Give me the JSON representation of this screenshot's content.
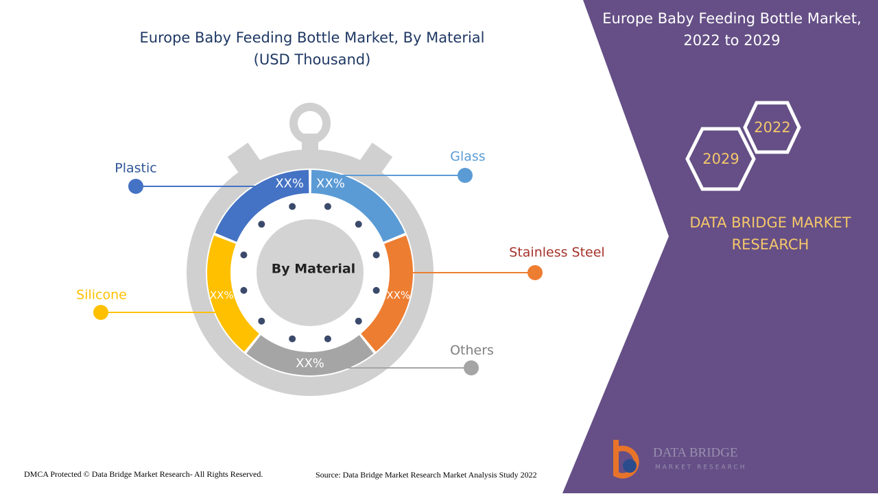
{
  "title": {
    "line1": "Europe Baby Feeding Bottle Market, By Material",
    "line2": "(USD Thousand)"
  },
  "center_label": "By Material",
  "segments": [
    {
      "name": "Plastic",
      "value_label": "XX%",
      "color": "#4472c4",
      "label_color": "#2f5597"
    },
    {
      "name": "Glass",
      "value_label": "XX%",
      "color": "#5b9bd5",
      "label_color": "#5b9bd5"
    },
    {
      "name": "Stainless Steel",
      "value_label": "XX%",
      "color": "#ed7d31",
      "label_color": "#a5312a"
    },
    {
      "name": "Others",
      "value_label": "XX%",
      "color": "#a5a5a5",
      "label_color": "#7f7f7f"
    },
    {
      "name": "Silicone",
      "value_label": "XX%",
      "color": "#ffc000",
      "label_color": "#ffc000"
    }
  ],
  "panel": {
    "title_line1": "Europe Baby Feeding Bottle Market,",
    "title_line2": "2022 to 2029",
    "year_start": "2022",
    "year_end": "2029",
    "brand_line1": "DATA BRIDGE MARKET",
    "brand_line2": "RESEARCH"
  },
  "logo": {
    "name": "DATA BRIDGE",
    "tagline": "MARKET RESEARCH"
  },
  "footer": {
    "copyright": "DMCA Protected © Data Bridge Market Research- All Rights Reserved.",
    "source": "Source: Data Bridge Market Research Market Analysis Study 2022"
  }
}
